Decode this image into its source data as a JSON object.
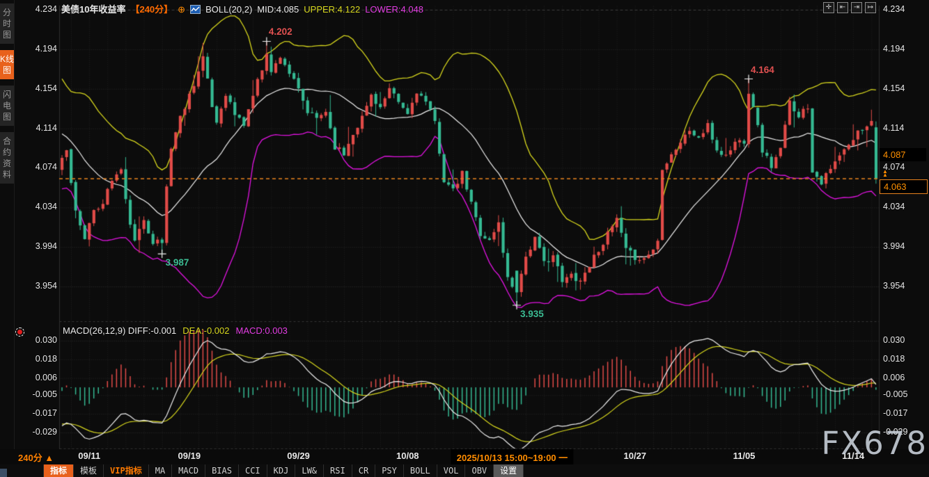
{
  "header": {
    "title": "美债10年收益率",
    "period_tag": "【240分】",
    "plus_icon": "⊕",
    "boll_label": "BOLL(20,2)",
    "mid_label": "MID:4.085",
    "upper_label": "UPPER:4.122",
    "lower_label": "LOWER:4.048"
  },
  "window_icons": [
    {
      "name": "pan-icon",
      "glyph": "✛"
    },
    {
      "name": "fit-horizontal-icon",
      "glyph": "⇤"
    },
    {
      "name": "fit-vertical-icon",
      "glyph": "⇥"
    },
    {
      "name": "reset-axis-icon",
      "glyph": "↦"
    }
  ],
  "sidebar": {
    "tabs": [
      {
        "label": "分时图",
        "active": false
      },
      {
        "label": "K线图",
        "active": true
      },
      {
        "label": "闪电图",
        "active": false
      },
      {
        "label": "合约资料",
        "active": false
      }
    ]
  },
  "macd_header": {
    "name_diff": "MACD(26,12,9) DIFF:-0.001",
    "dea": "DEA:-0.002",
    "macd": "MACD:0.003"
  },
  "price_tags": {
    "current": "4.087",
    "alert": "4.063",
    "alert_arrow": "▲▲"
  },
  "timeline": {
    "period_label": "240分 ▲",
    "ticks": [
      {
        "label": "09/11",
        "index": 6
      },
      {
        "label": "09/19",
        "index": 28
      },
      {
        "label": "09/29",
        "index": 52
      },
      {
        "label": "10/08",
        "index": 76
      },
      {
        "label": "10/27",
        "index": 126
      },
      {
        "label": "11/05",
        "index": 150
      },
      {
        "label": "11/14",
        "index": 174
      }
    ],
    "crosshair_label": "2025/10/13 15:00~19:00 一",
    "crosshair_index": 99
  },
  "toolbar": {
    "items": [
      {
        "label": "指标"
      },
      {
        "label": "模板"
      },
      {
        "label": "VIP指标"
      },
      {
        "label": "MA"
      },
      {
        "label": "MACD"
      },
      {
        "label": "BIAS"
      },
      {
        "label": "CCI"
      },
      {
        "label": "KDJ"
      },
      {
        "label": "LW&"
      },
      {
        "label": "RSI"
      },
      {
        "label": "CR"
      },
      {
        "label": "PSY"
      },
      {
        "label": "BOLL"
      },
      {
        "label": "VOL"
      },
      {
        "label": "OBV"
      },
      {
        "label": "设置"
      }
    ]
  },
  "watermark": "FX678",
  "colors": {
    "up": "#e24b48",
    "down": "#35ba93",
    "boll_upper": "#d6d61d",
    "boll_mid": "#eeeeee",
    "boll_lower": "#e213e2",
    "diff_line": "#eeeeee",
    "dea_line": "#d6d61d",
    "accent_orange": "#ff8000",
    "last_price_line": "#e8821e",
    "grid": "#282828"
  },
  "chart_data": {
    "type": "candlestick+macd",
    "symbol": "美债10年收益率",
    "period": "240分",
    "candle_count": 180,
    "price_axis": {
      "labels": [
        "4.234",
        "4.194",
        "4.154",
        "4.114",
        "4.074",
        "4.034",
        "3.994",
        "3.954"
      ],
      "values": [
        4.234,
        4.194,
        4.154,
        4.114,
        4.074,
        4.034,
        3.994,
        3.954
      ]
    },
    "macd_axis": {
      "labels": [
        "0.030",
        "0.018",
        "0.006",
        "-0.005",
        "-0.017",
        "-0.029"
      ],
      "values": [
        0.03,
        0.018,
        0.006,
        -0.005,
        -0.017,
        -0.029
      ]
    },
    "boll": {
      "period": 20,
      "width": 2,
      "mid": 4.085,
      "upper": 4.122,
      "lower": 4.048
    },
    "macd": {
      "fast": 12,
      "slow": 26,
      "signal": 9,
      "diff": -0.001,
      "dea": -0.002,
      "macd": 0.003
    },
    "last_price": 4.063,
    "current_label_price": 4.087,
    "annotations": [
      {
        "text": "4.202",
        "index": 45,
        "price": 4.202,
        "kind": "high"
      },
      {
        "text": "3.987",
        "index": 22,
        "price": 3.987,
        "kind": "low"
      },
      {
        "text": "3.935",
        "index": 100,
        "price": 3.935,
        "kind": "low"
      },
      {
        "text": "4.164",
        "index": 151,
        "price": 4.164,
        "kind": "high"
      }
    ],
    "close_keypoints": [
      [
        0,
        4.082
      ],
      [
        1,
        4.09
      ],
      [
        3,
        4.03
      ],
      [
        5,
        4.005
      ],
      [
        7,
        4.028
      ],
      [
        9,
        4.04
      ],
      [
        11,
        4.062
      ],
      [
        13,
        4.072
      ],
      [
        14,
        4.04
      ],
      [
        16,
        3.998
      ],
      [
        18,
        4.022
      ],
      [
        20,
        4.0
      ],
      [
        22,
        3.998
      ],
      [
        23,
        4.055
      ],
      [
        24,
        4.095
      ],
      [
        26,
        4.125
      ],
      [
        28,
        4.148
      ],
      [
        30,
        4.172
      ],
      [
        31,
        4.186
      ],
      [
        33,
        4.136
      ],
      [
        34,
        4.12
      ],
      [
        36,
        4.15
      ],
      [
        38,
        4.128
      ],
      [
        40,
        4.118
      ],
      [
        42,
        4.148
      ],
      [
        44,
        4.175
      ],
      [
        45,
        4.192
      ],
      [
        46,
        4.17
      ],
      [
        48,
        4.188
      ],
      [
        50,
        4.17
      ],
      [
        52,
        4.152
      ],
      [
        54,
        4.13
      ],
      [
        56,
        4.124
      ],
      [
        58,
        4.132
      ],
      [
        60,
        4.096
      ],
      [
        62,
        4.088
      ],
      [
        64,
        4.11
      ],
      [
        66,
        4.125
      ],
      [
        68,
        4.148
      ],
      [
        70,
        4.135
      ],
      [
        72,
        4.152
      ],
      [
        74,
        4.14
      ],
      [
        76,
        4.128
      ],
      [
        78,
        4.152
      ],
      [
        80,
        4.14
      ],
      [
        82,
        4.12
      ],
      [
        84,
        4.062
      ],
      [
        86,
        4.05
      ],
      [
        88,
        4.068
      ],
      [
        90,
        4.038
      ],
      [
        92,
        4.008
      ],
      [
        94,
        4.0
      ],
      [
        96,
        4.018
      ],
      [
        98,
        3.962
      ],
      [
        100,
        3.948
      ],
      [
        102,
        3.985
      ],
      [
        104,
        4.002
      ],
      [
        106,
        3.978
      ],
      [
        108,
        3.986
      ],
      [
        110,
        3.958
      ],
      [
        112,
        3.966
      ],
      [
        114,
        3.96
      ],
      [
        116,
        3.976
      ],
      [
        118,
        3.992
      ],
      [
        120,
        4.006
      ],
      [
        122,
        4.022
      ],
      [
        124,
        3.99
      ],
      [
        126,
        3.984
      ],
      [
        128,
        3.982
      ],
      [
        130,
        3.992
      ],
      [
        131,
        4.0
      ],
      [
        132,
        4.075
      ],
      [
        134,
        4.088
      ],
      [
        136,
        4.1
      ],
      [
        138,
        4.112
      ],
      [
        140,
        4.104
      ],
      [
        142,
        4.116
      ],
      [
        144,
        4.092
      ],
      [
        146,
        4.086
      ],
      [
        148,
        4.1
      ],
      [
        150,
        4.102
      ],
      [
        151,
        4.149
      ],
      [
        152,
        4.138
      ],
      [
        154,
        4.092
      ],
      [
        156,
        4.076
      ],
      [
        158,
        4.092
      ],
      [
        160,
        4.14
      ],
      [
        162,
        4.128
      ],
      [
        164,
        4.136
      ],
      [
        165,
        4.072
      ],
      [
        167,
        4.06
      ],
      [
        169,
        4.072
      ],
      [
        171,
        4.086
      ],
      [
        173,
        4.096
      ],
      [
        175,
        4.11
      ],
      [
        177,
        4.118
      ],
      [
        178,
        4.124
      ],
      [
        179,
        4.063
      ]
    ],
    "forced_candles": {
      "0": {
        "open": 4.072
      },
      "22": {
        "low": 3.987
      },
      "45": {
        "high": 4.202
      },
      "100": {
        "open": 3.97,
        "close": 3.948,
        "low": 3.935
      },
      "151": {
        "open": 4.098,
        "close": 4.149,
        "high": 4.164
      },
      "179": {
        "open": 4.115,
        "close": 4.063,
        "high": 4.121,
        "low": 4.058
      }
    },
    "prehistory": {
      "from": 4.19,
      "to": 4.065,
      "bars": 26
    },
    "noise": {
      "seed": 11,
      "close_jitter": 0.007,
      "wick": 0.009
    }
  }
}
